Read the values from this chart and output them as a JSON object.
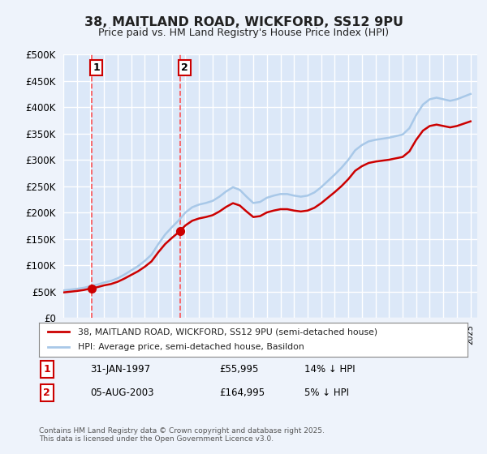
{
  "title": "38, MAITLAND ROAD, WICKFORD, SS12 9PU",
  "subtitle": "Price paid vs. HM Land Registry's House Price Index (HPI)",
  "legend_line1": "38, MAITLAND ROAD, WICKFORD, SS12 9PU (semi-detached house)",
  "legend_line2": "HPI: Average price, semi-detached house, Basildon",
  "marker1_label": "1",
  "marker1_date": "31-JAN-1997",
  "marker1_price": 55995,
  "marker1_pct": "14% ↓ HPI",
  "marker2_label": "2",
  "marker2_date": "05-AUG-2003",
  "marker2_price": 164995,
  "marker2_pct": "5% ↓ HPI",
  "footnote": "Contains HM Land Registry data © Crown copyright and database right 2025.\nThis data is licensed under the Open Government Licence v3.0.",
  "background_color": "#eef3fb",
  "plot_bg_color": "#dce8f8",
  "grid_color": "#ffffff",
  "hpi_line_color": "#a8c8e8",
  "price_line_color": "#cc0000",
  "dashed_line_color": "#ff4444",
  "marker_color": "#cc0000",
  "ylim": [
    0,
    500000
  ],
  "yticks": [
    0,
    50000,
    100000,
    150000,
    200000,
    250000,
    300000,
    350000,
    400000,
    450000,
    500000
  ]
}
